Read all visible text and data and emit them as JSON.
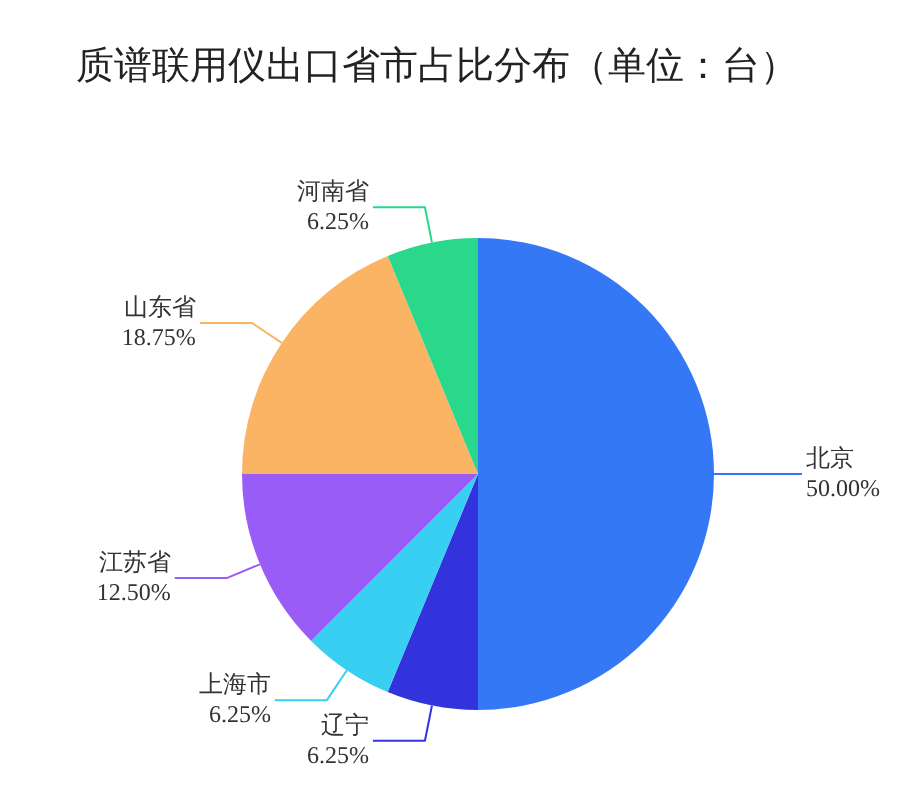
{
  "chart_data": {
    "type": "pie",
    "title": "质谱联用仪出口省市占比分布（单位：台）",
    "categories": [
      "北京",
      "辽宁",
      "上海市",
      "江苏省",
      "山东省",
      "河南省"
    ],
    "values": [
      50,
      6.25,
      6.25,
      12.5,
      18.75,
      6.25
    ],
    "value_labels": [
      "50.00%",
      "6.25%",
      "6.25%",
      "12.50%",
      "18.75%",
      "6.25%"
    ],
    "colors": [
      "#3478f6",
      "#3333dd",
      "#38cff2",
      "#9a5cf7",
      "#fbb464",
      "#2ad88c"
    ]
  }
}
